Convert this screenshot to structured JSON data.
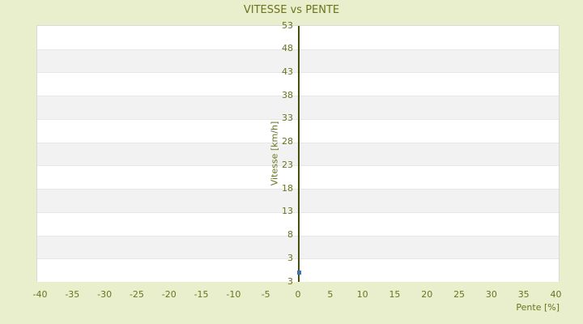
{
  "chart_data": {
    "type": "scatter",
    "title": "VITESSE vs PENTE",
    "xlabel": "Pente [%]",
    "ylabel": "Vitesse [km/h]",
    "x_ticks": [
      -40,
      -35,
      -30,
      -25,
      -20,
      -15,
      -10,
      -5,
      0,
      5,
      10,
      15,
      20,
      25,
      30,
      35,
      40
    ],
    "y_ticks": [
      53,
      48,
      43,
      38,
      33,
      28,
      23,
      18,
      13,
      8,
      3
    ],
    "y_axis_min_label": "3",
    "xlim": [
      -40,
      40
    ],
    "ylim": [
      -2,
      53
    ],
    "grid": "horizontal-bands",
    "legend": null,
    "axis_line_at_x": 0,
    "points": [
      {
        "x": 0,
        "y": 0
      }
    ],
    "colors": {
      "background": "#e9efcc",
      "text": "#6b731f",
      "band_light": "#ffffff",
      "band_dark": "#f2f2f2",
      "plot_border": "#d9d9d9",
      "axis_line": "#474f14",
      "point": "#3a76ad"
    }
  }
}
